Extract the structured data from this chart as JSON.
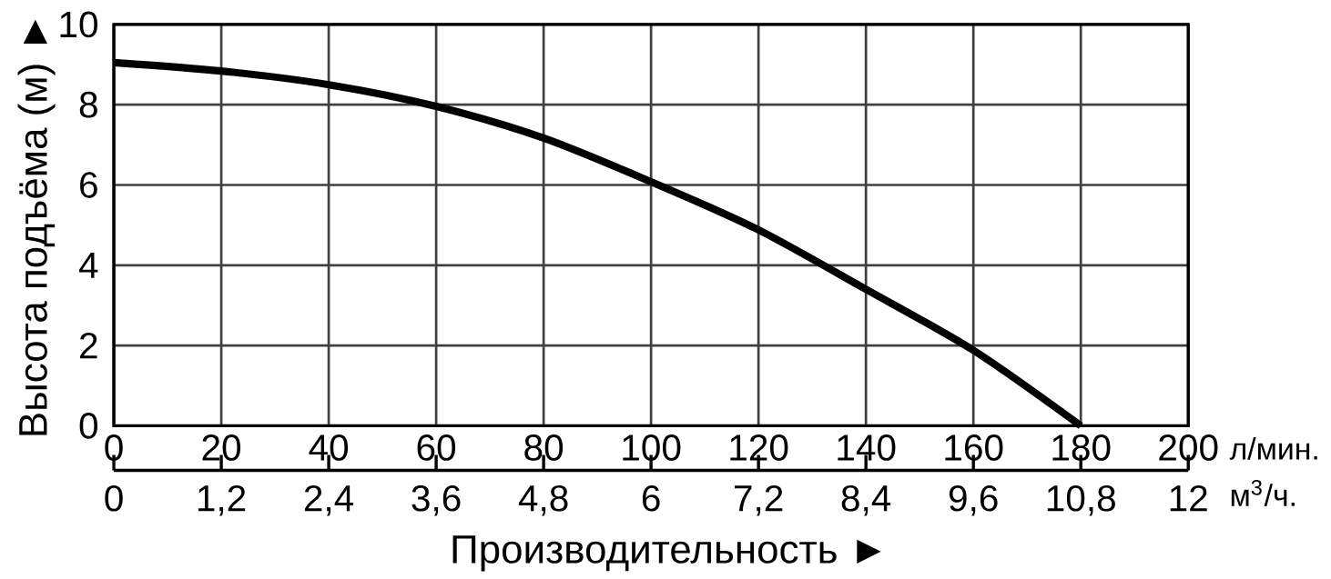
{
  "chart_data": {
    "type": "line",
    "xlabel": "Производительность ►",
    "ylabel": "Высота подъёма (м) ►",
    "annotations": [
      "л/мин.",
      "м$^{3}$/ч."
    ],
    "x": [
      0,
      20,
      40,
      60,
      80,
      100,
      120,
      140,
      160,
      180
    ],
    "series": [
      {
        "color": "#000000",
        "values": [
          9.05,
          8.84,
          8.5,
          7.96,
          7.17,
          6.08,
          4.88,
          3.4,
          1.88,
          0
        ]
      }
    ],
    "xlim": [
      0,
      200
    ],
    "xticks": [
      0,
      20,
      40,
      60,
      80,
      100,
      120,
      140,
      160,
      180,
      200
    ],
    "ylim": [
      0,
      10
    ],
    "yticks": [
      0,
      2,
      4,
      6,
      8,
      10
    ],
    "x2lim": [
      0,
      12
    ],
    "x2ticks": [
      0,
      {
        "value": 1.2,
        "label": "1,2"
      },
      {
        "value": 2.4,
        "label": "2,4"
      },
      {
        "value": 3.6,
        "label": "3,6"
      },
      {
        "value": 4.8,
        "label": "4,8"
      },
      6,
      {
        "value": 7.2,
        "label": "7,2"
      },
      {
        "value": 8.4,
        "label": "8,4"
      },
      {
        "value": 9.6,
        "label": "9,6"
      },
      {
        "value": 10.8,
        "label": "10,8"
      },
      12
    ],
    "grid": true,
    "marker": "none",
    "line_style": "solid"
  }
}
